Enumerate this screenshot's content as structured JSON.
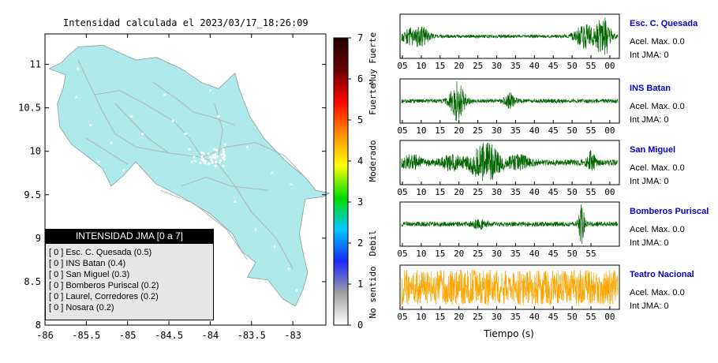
{
  "map": {
    "title": "Intensidad calculada el 2023/03/17_18:26:09",
    "x_ticks": [
      "-86",
      "-85.5",
      "-85",
      "-84.5",
      "-84",
      "-83.5",
      "-83"
    ],
    "y_ticks": [
      "11",
      "10.5",
      "10",
      "9.5",
      "9",
      "8.5",
      "8"
    ],
    "xlim": [
      -86,
      -82.6
    ],
    "ylim": [
      8,
      11.35
    ],
    "colors": {
      "land": "#aeeaea",
      "roads": "#b4b4b4",
      "points": "#ffffff",
      "frame": "#000000"
    }
  },
  "colorbar": {
    "ticks": [
      "0",
      "1",
      "2",
      "3",
      "4",
      "5",
      "6",
      "7"
    ],
    "range": [
      0,
      7
    ],
    "labels": [
      "No sentido",
      "Debil",
      "Moderado",
      "Fuerte",
      "Muy Fuerte"
    ],
    "colors": [
      "#ffffff",
      "#a0a0a0",
      "#1a28ff",
      "#00c8ff",
      "#00dc00",
      "#ffff00",
      "#ff8c00",
      "#ff0000",
      "#6a0000",
      "#200000"
    ]
  },
  "legend": {
    "title": "INTENSIDAD JMA [0 a 7]",
    "items": [
      "[ 0 ]  Esc. C. Quesada (0.5)",
      "[ 0 ]  INS Batan (0.4)",
      "[ 0 ]  San Miguel (0.3)",
      "[ 0 ]  Bomberos Puriscal (0.2)",
      "[ 0 ]  Laurel, Corredores (0.2)",
      "[ 0 ]  Nosara (0.2)"
    ]
  },
  "chart_data": {
    "type": "line",
    "xlabel": "Tiempo (s)",
    "x_tick_labels": [
      "05",
      "10",
      "15",
      "20",
      "25",
      "30",
      "35",
      "40",
      "45",
      "50",
      "55",
      "00"
    ],
    "series": [
      {
        "name": "Esc. C. Quesada",
        "acel_label": "Acel. Max. 0.0",
        "int_label": "Int JMA: 0",
        "color": "#006400",
        "x_tick_labels": [
          "05",
          "10",
          "15",
          "20",
          "25",
          "30",
          "35",
          "40",
          "45",
          "50",
          "55",
          "00"
        ],
        "events": [
          [
            3,
            0.4,
            3
          ],
          [
            6,
            0.3,
            2
          ],
          [
            52,
            0.6,
            3
          ],
          [
            57,
            1.0,
            2
          ]
        ],
        "noise": 0.08
      },
      {
        "name": "INS Batan",
        "acel_label": "Acel. Max. 0.0",
        "int_label": "Int JMA: 0",
        "color": "#006400",
        "x_tick_labels": [
          "05",
          "10",
          "15",
          "20",
          "25",
          "30",
          "35",
          "40",
          "45",
          "50",
          "55",
          "00"
        ],
        "events": [
          [
            15.8,
            1.0,
            2
          ],
          [
            30.5,
            0.35,
            1.5
          ]
        ],
        "noise": 0.1
      },
      {
        "name": "San Miguel",
        "acel_label": "Acel. Max. 0.0",
        "int_label": "Int JMA: 0",
        "color": "#006400",
        "x_tick_labels": [
          "05",
          "10",
          "15",
          "20",
          "25",
          "30",
          "35",
          "40",
          "45",
          "50",
          "55",
          "00"
        ],
        "events": [
          [
            3,
            0.3,
            3
          ],
          [
            14,
            0.3,
            3
          ],
          [
            23.5,
            1.0,
            4
          ],
          [
            33,
            0.3,
            3
          ],
          [
            53.5,
            0.55,
            1
          ]
        ],
        "noise": 0.15
      },
      {
        "name": "Bomberos Puriscal",
        "acel_label": "Acel. Max. 0.0",
        "int_label": "Int JMA: 0",
        "color": "#006400",
        "x_tick_labels": [
          "05",
          "10",
          "15",
          "20",
          "25",
          "30",
          "35",
          "40",
          "45",
          "50",
          "55"
        ],
        "events": [
          [
            22,
            0.2,
            2
          ],
          [
            50.8,
            1.0,
            0.8
          ]
        ],
        "noise": 0.12
      },
      {
        "name": "Teatro Nacional",
        "acel_label": "Acel. Max. 0.0",
        "int_label": "Int JMA: 0",
        "color": "#ffa500",
        "x_tick_labels": [
          "05",
          "10",
          "15",
          "20",
          "25",
          "30",
          "35",
          "40",
          "45",
          "50",
          "55",
          "00"
        ],
        "events": [],
        "noise": 0.9
      }
    ]
  }
}
